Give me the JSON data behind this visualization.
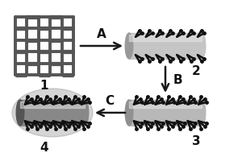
{
  "bg_color": "#ffffff",
  "arrow_color": "#1a1a1a",
  "label_A": "A",
  "label_B": "B",
  "label_C": "C",
  "step_labels": [
    "1",
    "2",
    "3",
    "4"
  ],
  "grid_color": "#555555",
  "cylinder_color": "#c8c8c8",
  "cylinder_dark": "#888888",
  "spike_color": "#111111",
  "dark_overlay": "#555555"
}
